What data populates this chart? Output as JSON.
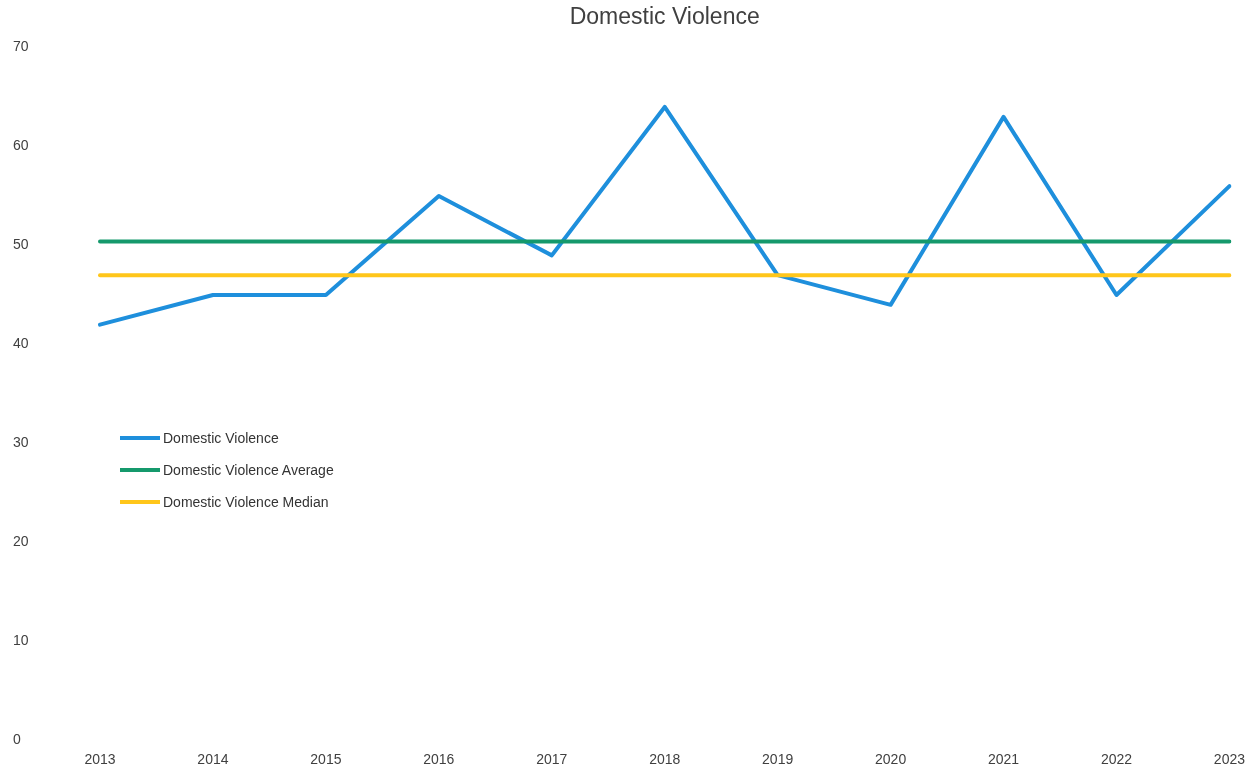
{
  "chart_data": {
    "type": "line",
    "title": "Domestic Violence",
    "categories": [
      "2013",
      "2014",
      "2015",
      "2016",
      "2017",
      "2018",
      "2019",
      "2020",
      "2021",
      "2022",
      "2023"
    ],
    "series": [
      {
        "name": "Domestic Violence",
        "color": "#1e8fdc",
        "values": [
          42,
          45,
          45,
          55,
          49,
          64,
          47,
          44,
          63,
          45,
          56
        ]
      },
      {
        "name": "Domestic Violence Average",
        "color": "#15996c",
        "values": [
          50.4,
          50.4,
          50.4,
          50.4,
          50.4,
          50.4,
          50.4,
          50.4,
          50.4,
          50.4,
          50.4
        ]
      },
      {
        "name": "Domestic Violence Median",
        "color": "#ffc61a",
        "values": [
          47,
          47,
          47,
          47,
          47,
          47,
          47,
          47,
          47,
          47,
          47
        ]
      }
    ],
    "ylim": [
      0,
      70
    ],
    "yticks": [
      0,
      10,
      20,
      30,
      40,
      50,
      60,
      70
    ],
    "legend": "left"
  }
}
